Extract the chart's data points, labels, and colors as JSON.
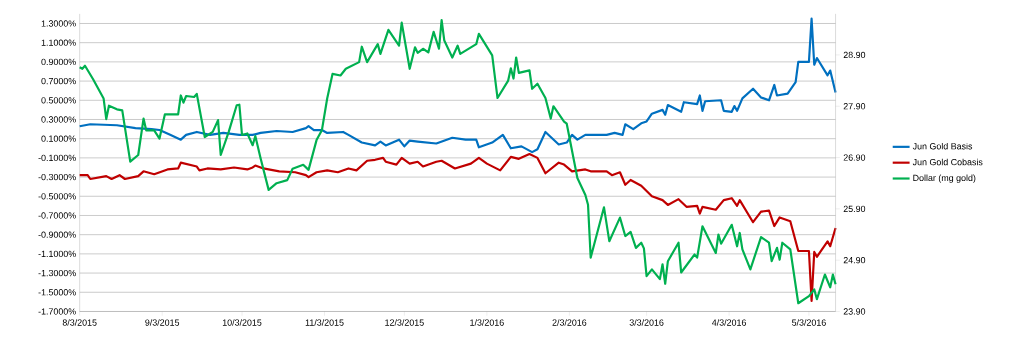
{
  "chart_data": {
    "type": "line",
    "grid": "y",
    "legend": "right",
    "xlim": [
      "2015-08-03",
      "2016-05-13"
    ],
    "xticks": [
      {
        "value": "2015-08-03",
        "label": "8/3/2015"
      },
      {
        "value": "2015-09-03",
        "label": "9/3/2015"
      },
      {
        "value": "2015-10-03",
        "label": "10/3/2015"
      },
      {
        "value": "2015-11-03",
        "label": "11/3/2015"
      },
      {
        "value": "2015-12-03",
        "label": "12/3/2015"
      },
      {
        "value": "2016-01-03",
        "label": "1/3/2016"
      },
      {
        "value": "2016-02-03",
        "label": "2/3/2016"
      },
      {
        "value": "2016-03-03",
        "label": "3/3/2016"
      },
      {
        "value": "2016-04-03",
        "label": "4/3/2016"
      },
      {
        "value": "2016-05-03",
        "label": "5/3/2016"
      }
    ],
    "ylim": [
      -1.7,
      1.4
    ],
    "yticks": [
      {
        "value": -1.7,
        "label": "-1.7000%"
      },
      {
        "value": -1.5,
        "label": "-1.5000%"
      },
      {
        "value": -1.3,
        "label": "-1.3000%"
      },
      {
        "value": -1.1,
        "label": "-1.1000%"
      },
      {
        "value": -0.9,
        "label": "-0.9000%"
      },
      {
        "value": -0.7,
        "label": "-0.7000%"
      },
      {
        "value": -0.5,
        "label": "-0.5000%"
      },
      {
        "value": -0.3,
        "label": "-0.3000%"
      },
      {
        "value": -0.1,
        "label": "-0.1000%"
      },
      {
        "value": 0.1,
        "label": "0.1000%"
      },
      {
        "value": 0.3,
        "label": "0.3000%"
      },
      {
        "value": 0.5,
        "label": "0.5000%"
      },
      {
        "value": 0.7,
        "label": "0.7000%"
      },
      {
        "value": 0.9,
        "label": "0.9000%"
      },
      {
        "value": 1.1,
        "label": "1.1000%"
      },
      {
        "value": 1.3,
        "label": "1.3000%"
      }
    ],
    "y2lim": [
      23.9,
      29.7
    ],
    "y2ticks": [
      {
        "value": 23.9,
        "label": "23.90"
      },
      {
        "value": 24.9,
        "label": "24.90"
      },
      {
        "value": 25.9,
        "label": "25.90"
      },
      {
        "value": 26.9,
        "label": "26.90"
      },
      {
        "value": 27.9,
        "label": "27.90"
      },
      {
        "value": 28.9,
        "label": "28.90"
      }
    ],
    "series": [
      {
        "name": "Jun Gold Basis",
        "color": "#0070c0",
        "x": [
          "2015-08-03",
          "2015-08-07",
          "2015-08-17",
          "2015-08-24",
          "2015-08-30",
          "2015-09-02",
          "2015-09-06",
          "2015-09-10",
          "2015-09-12",
          "2015-09-16",
          "2015-09-21",
          "2015-09-26",
          "2015-10-02",
          "2015-10-07",
          "2015-10-10",
          "2015-10-16",
          "2015-10-22",
          "2015-10-27",
          "2015-10-28",
          "2015-10-30",
          "2015-11-02",
          "2015-11-04",
          "2015-11-10",
          "2015-11-12",
          "2015-11-17",
          "2015-11-22",
          "2015-11-24",
          "2015-11-26",
          "2015-12-01",
          "2015-12-03",
          "2015-12-05",
          "2015-12-08",
          "2015-12-15",
          "2015-12-21",
          "2015-12-26",
          "2015-12-30",
          "2015-12-31",
          "2016-01-05",
          "2016-01-09",
          "2016-01-12",
          "2016-01-16",
          "2016-01-20",
          "2016-01-22",
          "2016-01-25",
          "2016-01-30",
          "2016-02-02",
          "2016-02-04",
          "2016-02-06",
          "2016-02-09",
          "2016-02-17",
          "2016-02-20",
          "2016-02-23",
          "2016-02-24",
          "2016-02-27",
          "2016-03-01",
          "2016-03-03",
          "2016-03-05",
          "2016-03-09",
          "2016-03-10",
          "2016-03-11",
          "2016-03-16",
          "2016-03-17",
          "2016-03-22",
          "2016-03-23",
          "2016-03-24",
          "2016-03-25",
          "2016-03-31",
          "2016-04-01",
          "2016-04-04",
          "2016-04-05",
          "2016-04-06",
          "2016-04-08",
          "2016-04-12",
          "2016-04-15",
          "2016-04-18",
          "2016-04-20",
          "2016-04-21",
          "2016-04-25",
          "2016-04-28",
          "2016-04-29",
          "2016-05-03",
          "2016-05-04",
          "2016-05-05",
          "2016-05-06",
          "2016-05-10",
          "2016-05-11",
          "2016-05-13"
        ],
        "values": [
          0.23,
          0.25,
          0.24,
          0.21,
          0.2,
          0.19,
          0.14,
          0.09,
          0.14,
          0.17,
          0.14,
          0.16,
          0.14,
          0.14,
          0.16,
          0.18,
          0.17,
          0.21,
          0.23,
          0.19,
          0.19,
          0.16,
          0.17,
          0.14,
          0.06,
          0.03,
          0.07,
          0.03,
          0.09,
          0.02,
          0.08,
          0.07,
          0.05,
          0.11,
          0.09,
          0.09,
          0.01,
          0.06,
          0.14,
          0.0,
          0.02,
          -0.04,
          -0.01,
          0.17,
          0.04,
          0.06,
          0.14,
          0.09,
          0.14,
          0.14,
          0.16,
          0.14,
          0.25,
          0.2,
          0.26,
          0.28,
          0.36,
          0.4,
          0.35,
          0.45,
          0.38,
          0.48,
          0.46,
          0.55,
          0.39,
          0.49,
          0.5,
          0.39,
          0.38,
          0.44,
          0.39,
          0.52,
          0.62,
          0.53,
          0.5,
          0.66,
          0.55,
          0.57,
          0.69,
          0.9,
          0.9,
          1.35,
          0.87,
          0.94,
          0.76,
          0.81,
          0.58
        ]
      },
      {
        "name": "Jun Gold Cobasis",
        "color": "#c00000",
        "x": [
          "2015-08-03",
          "2015-08-06",
          "2015-08-07",
          "2015-08-13",
          "2015-08-15",
          "2015-08-18",
          "2015-08-20",
          "2015-08-25",
          "2015-08-27",
          "2015-08-31",
          "2015-09-05",
          "2015-09-09",
          "2015-09-10",
          "2015-09-16",
          "2015-09-17",
          "2015-09-20",
          "2015-09-25",
          "2015-09-30",
          "2015-10-05",
          "2015-10-07",
          "2015-10-08",
          "2015-10-11",
          "2015-10-17",
          "2015-10-23",
          "2015-10-27",
          "2015-10-28",
          "2015-10-31",
          "2015-11-04",
          "2015-11-08",
          "2015-11-12",
          "2015-11-15",
          "2015-11-19",
          "2015-11-22",
          "2015-11-25",
          "2015-11-26",
          "2015-11-30",
          "2015-12-02",
          "2015-12-05",
          "2015-12-08",
          "2015-12-10",
          "2015-12-15",
          "2015-12-17",
          "2015-12-22",
          "2015-12-28",
          "2015-12-31",
          "2016-01-03",
          "2016-01-08",
          "2016-01-12",
          "2016-01-15",
          "2016-01-19",
          "2016-01-22",
          "2016-01-25",
          "2016-01-30",
          "2016-02-01",
          "2016-02-04",
          "2016-02-09",
          "2016-02-11",
          "2016-02-17",
          "2016-02-19",
          "2016-02-22",
          "2016-02-24",
          "2016-02-26",
          "2016-03-01",
          "2016-03-05",
          "2016-03-09",
          "2016-03-11",
          "2016-03-15",
          "2016-03-18",
          "2016-03-22",
          "2016-03-23",
          "2016-03-24",
          "2016-03-29",
          "2016-04-01",
          "2016-04-04",
          "2016-04-06",
          "2016-04-07",
          "2016-04-12",
          "2016-04-15",
          "2016-04-18",
          "2016-04-20",
          "2016-04-22",
          "2016-04-26",
          "2016-04-29",
          "2016-05-03",
          "2016-05-04",
          "2016-05-05",
          "2016-05-06",
          "2016-05-10",
          "2016-05-11",
          "2016-05-13"
        ],
        "values": [
          -0.28,
          -0.28,
          -0.32,
          -0.29,
          -0.32,
          -0.28,
          -0.32,
          -0.29,
          -0.24,
          -0.27,
          -0.22,
          -0.21,
          -0.15,
          -0.19,
          -0.23,
          -0.21,
          -0.22,
          -0.2,
          -0.22,
          -0.2,
          -0.18,
          -0.21,
          -0.24,
          -0.25,
          -0.28,
          -0.3,
          -0.25,
          -0.23,
          -0.25,
          -0.21,
          -0.23,
          -0.13,
          -0.12,
          -0.1,
          -0.14,
          -0.17,
          -0.1,
          -0.16,
          -0.14,
          -0.19,
          -0.14,
          -0.13,
          -0.21,
          -0.16,
          -0.1,
          -0.16,
          -0.23,
          -0.09,
          -0.11,
          -0.06,
          -0.1,
          -0.26,
          -0.15,
          -0.17,
          -0.24,
          -0.22,
          -0.24,
          -0.24,
          -0.28,
          -0.25,
          -0.38,
          -0.33,
          -0.39,
          -0.5,
          -0.54,
          -0.59,
          -0.53,
          -0.61,
          -0.6,
          -0.68,
          -0.61,
          -0.64,
          -0.54,
          -0.52,
          -0.6,
          -0.54,
          -0.77,
          -0.66,
          -0.65,
          -0.81,
          -0.72,
          -0.76,
          -1.07,
          -1.07,
          -1.59,
          -1.08,
          -1.13,
          -0.97,
          -1.02,
          -0.83
        ]
      },
      {
        "name": "Dollar (mg gold)",
        "color": "#00b050",
        "axis": "y2",
        "x": [
          "2015-08-03",
          "2015-08-04",
          "2015-08-05",
          "2015-08-08",
          "2015-08-12",
          "2015-08-13",
          "2015-08-14",
          "2015-08-17",
          "2015-08-19",
          "2015-08-22",
          "2015-08-25",
          "2015-08-27",
          "2015-08-28",
          "2015-08-31",
          "2015-09-02",
          "2015-09-04",
          "2015-09-09",
          "2015-09-10",
          "2015-09-11",
          "2015-09-12",
          "2015-09-15",
          "2015-09-16",
          "2015-09-19",
          "2015-09-22",
          "2015-09-24",
          "2015-09-25",
          "2015-09-28",
          "2015-10-01",
          "2015-10-02",
          "2015-10-03",
          "2015-10-05",
          "2015-10-07",
          "2015-10-08",
          "2015-10-10",
          "2015-10-13",
          "2015-10-16",
          "2015-10-20",
          "2015-10-22",
          "2015-10-26",
          "2015-10-28",
          "2015-10-31",
          "2015-11-02",
          "2015-11-04",
          "2015-11-06",
          "2015-11-09",
          "2015-11-11",
          "2015-11-16",
          "2015-11-17",
          "2015-11-19",
          "2015-11-23",
          "2015-11-24",
          "2015-11-27",
          "2015-12-01",
          "2015-12-02",
          "2015-12-05",
          "2015-12-07",
          "2015-12-08",
          "2015-12-10",
          "2015-12-12",
          "2015-12-14",
          "2015-12-16",
          "2015-12-17",
          "2015-12-18",
          "2015-12-21",
          "2015-12-23",
          "2015-12-24",
          "2015-12-30",
          "2015-12-31",
          "2016-01-05",
          "2016-01-07",
          "2016-01-11",
          "2016-01-12",
          "2016-01-13",
          "2016-01-14",
          "2016-01-15",
          "2016-01-19",
          "2016-01-20",
          "2016-01-22",
          "2016-01-25",
          "2016-01-27",
          "2016-01-28",
          "2016-02-01",
          "2016-02-02",
          "2016-02-06",
          "2016-02-09",
          "2016-02-10",
          "2016-02-11",
          "2016-02-16",
          "2016-02-18",
          "2016-02-22",
          "2016-02-24",
          "2016-02-26",
          "2016-02-28",
          "2016-03-01",
          "2016-03-02",
          "2016-03-03",
          "2016-03-05",
          "2016-03-08",
          "2016-03-09",
          "2016-03-10",
          "2016-03-11",
          "2016-03-15",
          "2016-03-16",
          "2016-03-21",
          "2016-03-22",
          "2016-03-24",
          "2016-03-29",
          "2016-03-30",
          "2016-03-31",
          "2016-04-04",
          "2016-04-06",
          "2016-04-07",
          "2016-04-08",
          "2016-04-11",
          "2016-04-15",
          "2016-04-18",
          "2016-04-19",
          "2016-04-21",
          "2016-04-22",
          "2016-04-23",
          "2016-04-26",
          "2016-04-29",
          "2016-05-03",
          "2016-05-05",
          "2016-05-06",
          "2016-05-09",
          "2016-05-11",
          "2016-05-12",
          "2016-05-13"
        ],
        "values": [
          28.66,
          28.63,
          28.69,
          28.43,
          28.05,
          27.65,
          27.91,
          27.84,
          27.82,
          26.82,
          26.95,
          27.66,
          27.43,
          27.43,
          27.27,
          27.74,
          27.74,
          28.11,
          27.97,
          28.1,
          28.08,
          28.14,
          27.3,
          27.4,
          27.63,
          26.95,
          27.4,
          27.92,
          27.93,
          27.34,
          27.37,
          27.14,
          27.32,
          26.88,
          26.27,
          26.4,
          26.46,
          26.68,
          26.76,
          26.66,
          27.24,
          27.43,
          28.05,
          28.53,
          28.5,
          28.63,
          28.76,
          29.06,
          28.76,
          29.11,
          28.92,
          29.39,
          29.08,
          29.53,
          28.63,
          29.05,
          28.94,
          29.02,
          28.95,
          29.35,
          29.02,
          29.58,
          29.18,
          28.85,
          29.08,
          28.92,
          29.11,
          29.31,
          28.89,
          28.06,
          28.4,
          28.64,
          28.44,
          28.85,
          28.55,
          28.6,
          28.24,
          28.34,
          28.06,
          27.66,
          27.9,
          27.6,
          27.56,
          26.5,
          26.17,
          25.98,
          24.95,
          25.93,
          25.27,
          25.73,
          25.37,
          25.45,
          25.14,
          25.24,
          25.13,
          24.59,
          24.72,
          24.53,
          24.82,
          24.44,
          24.88,
          25.24,
          24.66,
          25.01,
          24.95,
          25.56,
          25.04,
          25.4,
          25.22,
          25.59,
          25.17,
          25.43,
          25.11,
          24.72,
          25.35,
          25.24,
          24.88,
          25.14,
          24.91,
          25.24,
          25.11,
          24.06,
          24.2,
          24.33,
          24.14,
          24.62,
          24.37,
          24.62,
          24.43
        ]
      }
    ]
  }
}
